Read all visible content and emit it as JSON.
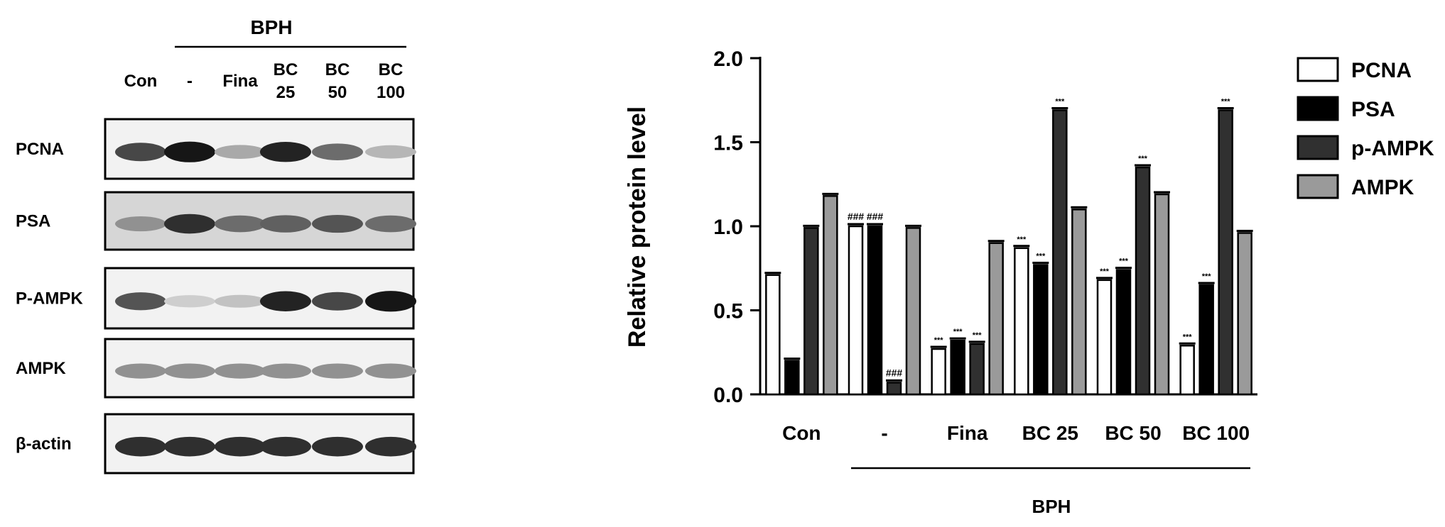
{
  "blot": {
    "group_label": "BPH",
    "lanes": [
      {
        "line1": "Con",
        "line2": ""
      },
      {
        "line1": "-",
        "line2": ""
      },
      {
        "line1": "Fina",
        "line2": ""
      },
      {
        "line1": "BC",
        "line2": "25"
      },
      {
        "line1": "BC",
        "line2": "50"
      },
      {
        "line1": "BC",
        "line2": "100"
      }
    ],
    "rows": [
      "PCNA",
      "PSA",
      "P-AMPK",
      "AMPK",
      "β-actin"
    ],
    "band_intensity": [
      [
        0.75,
        0.95,
        0.35,
        0.9,
        0.6,
        0.3
      ],
      [
        0.45,
        0.85,
        0.6,
        0.65,
        0.7,
        0.6
      ],
      [
        0.7,
        0.2,
        0.25,
        0.9,
        0.75,
        0.95
      ],
      [
        0.45,
        0.45,
        0.45,
        0.45,
        0.45,
        0.45
      ],
      [
        0.85,
        0.85,
        0.85,
        0.85,
        0.85,
        0.85
      ]
    ]
  },
  "chart_data": {
    "type": "bar",
    "ylabel": "Relative protein level",
    "xlabel": "",
    "group_label": "BPH",
    "ylim": [
      0,
      2.0
    ],
    "yticks": [
      "0.0",
      "0.5",
      "1.0",
      "1.5",
      "2.0"
    ],
    "categories": [
      "Con",
      "-",
      "Fina",
      "BC  25",
      "BC  50",
      "BC  100"
    ],
    "legend_position": "top-right",
    "series": [
      {
        "name": "PCNA",
        "color": "#ffffff",
        "values": [
          0.71,
          1.0,
          0.27,
          0.87,
          0.68,
          0.29
        ],
        "annotations": [
          "",
          "###",
          "***",
          "***",
          "***",
          "***"
        ]
      },
      {
        "name": "PSA",
        "color": "#000000",
        "values": [
          0.2,
          1.0,
          0.32,
          0.77,
          0.74,
          0.65
        ],
        "annotations": [
          "",
          "###",
          "***",
          "***",
          "***",
          "***"
        ]
      },
      {
        "name": "p-AMPK",
        "color": "#303030",
        "values": [
          0.99,
          0.07,
          0.3,
          1.69,
          1.35,
          1.69
        ],
        "annotations": [
          "",
          "###",
          "***",
          "***",
          "***",
          "***"
        ]
      },
      {
        "name": "AMPK",
        "color": "#9a9a9a",
        "values": [
          1.18,
          0.99,
          0.9,
          1.1,
          1.19,
          0.96
        ],
        "annotations": [
          "",
          "",
          "",
          "",
          "",
          ""
        ]
      }
    ]
  }
}
